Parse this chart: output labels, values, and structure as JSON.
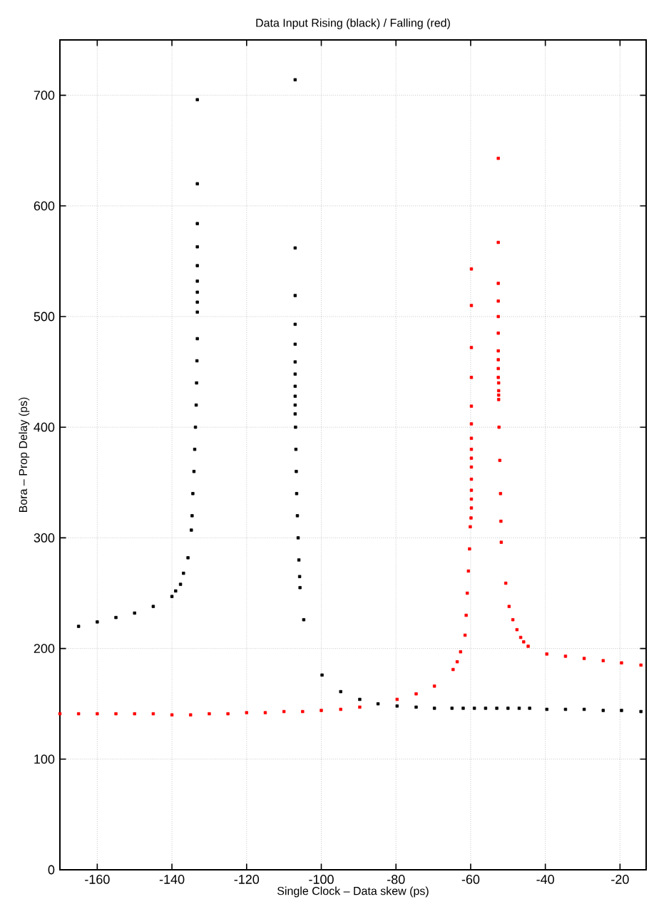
{
  "chart_data": {
    "type": "scatter",
    "title": "Data Input Rising (black) / Falling (red)",
    "xlabel": "Single Clock – Data skew (ps)",
    "ylabel": "Bora – Prop Delay (ps)",
    "xlim": [
      -170,
      -13
    ],
    "ylim": [
      0,
      750
    ],
    "xticks": [
      -160,
      -140,
      -120,
      -100,
      -80,
      -60,
      -40,
      -20
    ],
    "yticks": [
      0,
      100,
      200,
      300,
      400,
      500,
      600,
      700
    ],
    "grid": true,
    "marker": "square",
    "series": [
      {
        "color": "#000000",
        "x": [
          -165,
          -160,
          -155,
          -150,
          -145,
          -140,
          -139,
          -137.7,
          -136.9,
          -135.7,
          -134.8,
          -134.6,
          -134.4,
          -134.1,
          -133.9,
          -133.7,
          -133.5,
          -133.4,
          -133.3,
          -133.2,
          -133.2,
          -133.2,
          -133.2,
          -133.2,
          -133.2,
          -133.2,
          -133.2,
          -133.2,
          -133.2,
          -107,
          -107,
          -107,
          -107,
          -107,
          -107,
          -107,
          -107,
          -107,
          -107,
          -107,
          -106.9,
          -106.8,
          -106.7,
          -106.6,
          -106.4,
          -106.2,
          -106,
          -105.8,
          -105.7,
          -104.7,
          -99.8,
          -94.8,
          -89.7,
          -84.8,
          -79.7,
          -74.6,
          -69.7,
          -65,
          -62,
          -59,
          -56,
          -53,
          -50,
          -47,
          -44.2,
          -39.6,
          -34.6,
          -29.6,
          -24.5,
          -19.6,
          -14.4
        ],
        "values": [
          220,
          224,
          228,
          232,
          238,
          247,
          252,
          258,
          268,
          282,
          307,
          320,
          340,
          360,
          380,
          400,
          420,
          440,
          460,
          480,
          504,
          513,
          522,
          532,
          546,
          563,
          584,
          620,
          696,
          714,
          562,
          519,
          493,
          475,
          459,
          448,
          437,
          428,
          420,
          412,
          400,
          380,
          360,
          340,
          320,
          300,
          280,
          265,
          255,
          226,
          176,
          161,
          154,
          150,
          148,
          147,
          146,
          146,
          146,
          146,
          146,
          146,
          146,
          146,
          146,
          145,
          145,
          145,
          144,
          144,
          143
        ]
      },
      {
        "color": "#ff0000",
        "x": [
          -170,
          -165,
          -160,
          -155,
          -150,
          -145,
          -140,
          -135,
          -130,
          -125,
          -120,
          -115,
          -110,
          -105,
          -100,
          -94.8,
          -89.7,
          -79.7,
          -74.6,
          -69.7,
          -64.7,
          -63.6,
          -62.7,
          -61.5,
          -61.2,
          -60.9,
          -60.6,
          -60.3,
          -60.1,
          -59.9,
          -59.8,
          -59.8,
          -59.8,
          -59.8,
          -59.8,
          -59.8,
          -59.8,
          -59.8,
          -59.8,
          -59.8,
          -59.8,
          -59.8,
          -59.8,
          -59.8,
          -52.6,
          -52.6,
          -52.6,
          -52.6,
          -52.6,
          -52.6,
          -52.6,
          -52.6,
          -52.6,
          -52.6,
          -52.5,
          -52.5,
          -52.5,
          -52.5,
          -52.4,
          -52.2,
          -52,
          -51.9,
          -51.8,
          -50.6,
          -49.7,
          -48.7,
          -47.6,
          -46.6,
          -45.8,
          -44.6,
          -39.6,
          -34.6,
          -29.6,
          -24.5,
          -19.6,
          -14.4
        ],
        "values": [
          141,
          141,
          141,
          141,
          141,
          141,
          140,
          140,
          141,
          141,
          142,
          142,
          143,
          143,
          144,
          145,
          147,
          154,
          159,
          166,
          181,
          188,
          197,
          212,
          230,
          250,
          270,
          290,
          310,
          318,
          327,
          335,
          343,
          353,
          364,
          372,
          380,
          390,
          403,
          419,
          445,
          472,
          510,
          543,
          643,
          567,
          530,
          514,
          500,
          485,
          469,
          461,
          453,
          445,
          440,
          433,
          429,
          425,
          400,
          370,
          340,
          315,
          296,
          259,
          238,
          226,
          217,
          210,
          206,
          202,
          195,
          193,
          191,
          189,
          187,
          185
        ]
      }
    ]
  }
}
